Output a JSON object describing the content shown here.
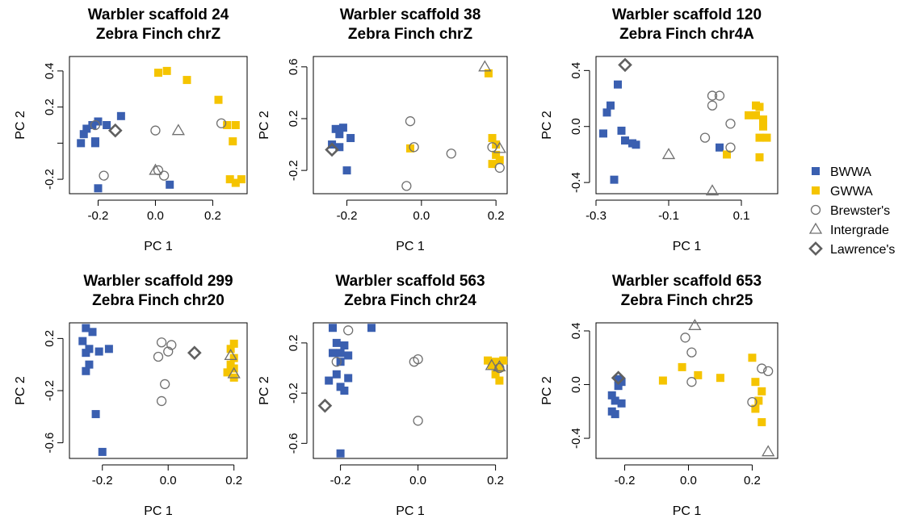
{
  "legend": {
    "items": [
      {
        "label": "BWWA",
        "shape": "square",
        "color": "#3a5fb0"
      },
      {
        "label": "GWWA",
        "shape": "square",
        "color": "#f5c400"
      },
      {
        "label": "Brewster's",
        "shape": "circle",
        "color": "#707070"
      },
      {
        "label": "Intergrade",
        "shape": "triangle",
        "color": "#707070"
      },
      {
        "label": "Lawrence's",
        "shape": "diamond",
        "color": "#707070"
      }
    ]
  },
  "chart_data": [
    {
      "type": "scatter",
      "title": [
        "Warbler scaffold 24",
        "Zebra Finch chrZ"
      ],
      "xlabel": "PC 1",
      "ylabel": "PC 2",
      "xlim": [
        -0.3,
        0.32
      ],
      "ylim": [
        -0.28,
        0.48
      ],
      "xticks": [
        {
          "v": -0.2,
          "t": "-0.2"
        },
        {
          "v": 0.0,
          "t": "0.0"
        },
        {
          "v": 0.2,
          "t": "0.2"
        }
      ],
      "yticks": [
        {
          "v": -0.2,
          "t": "-0.2"
        },
        {
          "v": 0.0,
          "t": ""
        },
        {
          "v": 0.2,
          "t": "0.2"
        },
        {
          "v": 0.4,
          "t": "0.4"
        }
      ],
      "series": [
        {
          "name": "BWWA",
          "points": [
            [
              -0.26,
              0.0
            ],
            [
              -0.25,
              0.05
            ],
            [
              -0.24,
              0.08
            ],
            [
              -0.22,
              0.1
            ],
            [
              -0.21,
              0.01
            ],
            [
              -0.2,
              0.12
            ],
            [
              -0.17,
              0.1
            ],
            [
              -0.12,
              0.15
            ],
            [
              -0.2,
              -0.25
            ],
            [
              0.05,
              -0.23
            ],
            [
              -0.21,
              0.0
            ]
          ]
        },
        {
          "name": "GWWA",
          "points": [
            [
              0.01,
              0.39
            ],
            [
              0.04,
              0.4
            ],
            [
              0.11,
              0.35
            ],
            [
              0.22,
              0.24
            ],
            [
              0.25,
              0.1
            ],
            [
              0.28,
              0.1
            ],
            [
              0.27,
              0.01
            ],
            [
              0.26,
              -0.2
            ],
            [
              0.28,
              -0.22
            ],
            [
              0.3,
              -0.2
            ]
          ]
        },
        {
          "name": "Brewster's",
          "points": [
            [
              -0.21,
              0.1
            ],
            [
              -0.18,
              -0.18
            ],
            [
              0.0,
              0.07
            ],
            [
              0.01,
              -0.15
            ],
            [
              0.03,
              -0.18
            ],
            [
              0.23,
              0.11
            ]
          ]
        },
        {
          "name": "Intergrade",
          "points": [
            [
              0.0,
              -0.15
            ],
            [
              0.08,
              0.07
            ]
          ]
        },
        {
          "name": "Lawrence's",
          "points": [
            [
              -0.14,
              0.07
            ]
          ]
        }
      ]
    },
    {
      "type": "scatter",
      "title": [
        "Warbler scaffold 38",
        "Zebra Finch chrZ"
      ],
      "xlabel": "PC 1",
      "ylabel": "PC 2",
      "xlim": [
        -0.29,
        0.23
      ],
      "ylim": [
        -0.38,
        0.68
      ],
      "xticks": [
        {
          "v": -0.2,
          "t": "-0.2"
        },
        {
          "v": 0.0,
          "t": "0.0"
        },
        {
          "v": 0.2,
          "t": "0.2"
        }
      ],
      "yticks": [
        {
          "v": -0.2,
          "t": "-0.2"
        },
        {
          "v": 0.2,
          "t": "0.2"
        },
        {
          "v": 0.6,
          "t": "0.6"
        }
      ],
      "series": [
        {
          "name": "BWWA",
          "points": [
            [
              -0.23,
              0.12
            ],
            [
              -0.22,
              0.08
            ],
            [
              -0.21,
              0.13
            ],
            [
              -0.24,
              0.0
            ],
            [
              -0.22,
              -0.02
            ],
            [
              -0.19,
              0.05
            ],
            [
              -0.2,
              -0.2
            ]
          ]
        },
        {
          "name": "GWWA",
          "points": [
            [
              0.18,
              0.55
            ],
            [
              0.19,
              0.05
            ],
            [
              0.2,
              0.0
            ],
            [
              0.2,
              -0.08
            ],
            [
              0.21,
              -0.12
            ],
            [
              0.19,
              -0.15
            ],
            [
              -0.03,
              -0.03
            ]
          ]
        },
        {
          "name": "Brewster's",
          "points": [
            [
              -0.03,
              0.18
            ],
            [
              -0.04,
              -0.32
            ],
            [
              -0.02,
              -0.02
            ],
            [
              0.08,
              -0.07
            ],
            [
              0.19,
              -0.02
            ],
            [
              0.21,
              -0.18
            ]
          ]
        },
        {
          "name": "Intergrade",
          "points": [
            [
              0.17,
              0.6
            ],
            [
              0.21,
              -0.03
            ]
          ]
        },
        {
          "name": "Lawrence's",
          "points": [
            [
              -0.24,
              -0.04
            ]
          ]
        }
      ]
    },
    {
      "type": "scatter",
      "title": [
        "Warbler scaffold 120",
        "Zebra Finch chr4A"
      ],
      "xlabel": "PC 1",
      "ylabel": "PC 2",
      "xlim": [
        -0.3,
        0.2
      ],
      "ylim": [
        -0.48,
        0.5
      ],
      "xticks": [
        {
          "v": -0.3,
          "t": "-0.3"
        },
        {
          "v": -0.1,
          "t": "-0.1"
        },
        {
          "v": 0.1,
          "t": "0.1"
        }
      ],
      "yticks": [
        {
          "v": -0.4,
          "t": "-0.4"
        },
        {
          "v": 0.0,
          "t": "0.0"
        },
        {
          "v": 0.4,
          "t": "0.4"
        }
      ],
      "series": [
        {
          "name": "BWWA",
          "points": [
            [
              -0.24,
              0.3
            ],
            [
              -0.26,
              0.15
            ],
            [
              -0.27,
              0.1
            ],
            [
              -0.28,
              -0.05
            ],
            [
              -0.23,
              -0.03
            ],
            [
              -0.22,
              -0.1
            ],
            [
              -0.2,
              -0.12
            ],
            [
              -0.19,
              -0.13
            ],
            [
              0.04,
              -0.15
            ],
            [
              -0.25,
              -0.38
            ]
          ]
        },
        {
          "name": "GWWA",
          "points": [
            [
              0.12,
              0.08
            ],
            [
              0.14,
              0.15
            ],
            [
              0.15,
              0.14
            ],
            [
              0.16,
              0.05
            ],
            [
              0.16,
              0.0
            ],
            [
              0.15,
              -0.08
            ],
            [
              0.17,
              -0.08
            ],
            [
              0.14,
              0.08
            ],
            [
              0.06,
              -0.2
            ],
            [
              0.15,
              -0.22
            ]
          ]
        },
        {
          "name": "Brewster's",
          "points": [
            [
              0.02,
              0.22
            ],
            [
              0.04,
              0.22
            ],
            [
              0.02,
              0.15
            ],
            [
              0.07,
              0.02
            ],
            [
              0.0,
              -0.08
            ],
            [
              0.07,
              -0.15
            ]
          ]
        },
        {
          "name": "Intergrade",
          "points": [
            [
              -0.1,
              -0.2
            ],
            [
              0.02,
              -0.46
            ]
          ]
        },
        {
          "name": "Lawrence's",
          "points": [
            [
              -0.22,
              0.44
            ]
          ]
        }
      ]
    },
    {
      "type": "scatter",
      "title": [
        "Warbler scaffold 299",
        "Zebra Finch chr20"
      ],
      "xlabel": "PC 1",
      "ylabel": "PC 2",
      "xlim": [
        -0.3,
        0.24
      ],
      "ylim": [
        -0.72,
        0.32
      ],
      "xticks": [
        {
          "v": -0.2,
          "t": "-0.2"
        },
        {
          "v": 0.0,
          "t": "0.0"
        },
        {
          "v": 0.2,
          "t": "0.2"
        }
      ],
      "yticks": [
        {
          "v": -0.6,
          "t": "-0.6"
        },
        {
          "v": -0.2,
          "t": "-0.2"
        },
        {
          "v": 0.2,
          "t": "0.2"
        }
      ],
      "series": [
        {
          "name": "BWWA",
          "points": [
            [
              -0.25,
              0.28
            ],
            [
              -0.23,
              0.25
            ],
            [
              -0.26,
              0.18
            ],
            [
              -0.24,
              0.12
            ],
            [
              -0.25,
              0.09
            ],
            [
              -0.21,
              0.1
            ],
            [
              -0.18,
              0.12
            ],
            [
              -0.24,
              0.0
            ],
            [
              -0.25,
              -0.05
            ],
            [
              -0.22,
              -0.38
            ],
            [
              -0.2,
              -0.67
            ]
          ]
        },
        {
          "name": "GWWA",
          "points": [
            [
              0.2,
              0.16
            ],
            [
              0.19,
              0.12
            ],
            [
              0.2,
              0.05
            ],
            [
              0.19,
              0.0
            ],
            [
              0.2,
              -0.03
            ],
            [
              0.18,
              -0.06
            ],
            [
              0.2,
              -0.1
            ]
          ]
        },
        {
          "name": "Brewster's",
          "points": [
            [
              -0.02,
              0.17
            ],
            [
              0.01,
              0.15
            ],
            [
              0.0,
              0.1
            ],
            [
              -0.03,
              0.06
            ],
            [
              -0.01,
              -0.15
            ],
            [
              -0.02,
              -0.28
            ]
          ]
        },
        {
          "name": "Intergrade",
          "points": [
            [
              0.19,
              0.07
            ],
            [
              0.2,
              -0.07
            ]
          ]
        },
        {
          "name": "Lawrence's",
          "points": [
            [
              0.08,
              0.09
            ]
          ]
        }
      ]
    },
    {
      "type": "scatter",
      "title": [
        "Warbler scaffold 563",
        "Zebra Finch chr24"
      ],
      "xlabel": "PC 1",
      "ylabel": "PC 2",
      "xlim": [
        -0.27,
        0.23
      ],
      "ylim": [
        -0.72,
        0.36
      ],
      "xticks": [
        {
          "v": -0.2,
          "t": "-0.2"
        },
        {
          "v": 0.0,
          "t": "0.0"
        },
        {
          "v": 0.2,
          "t": "0.2"
        }
      ],
      "yticks": [
        {
          "v": -0.6,
          "t": "-0.6"
        },
        {
          "v": -0.2,
          "t": "-0.2"
        },
        {
          "v": 0.2,
          "t": "0.2"
        }
      ],
      "series": [
        {
          "name": "BWWA",
          "points": [
            [
              -0.22,
              0.32
            ],
            [
              -0.12,
              0.32
            ],
            [
              -0.21,
              0.2
            ],
            [
              -0.19,
              0.18
            ],
            [
              -0.22,
              0.12
            ],
            [
              -0.2,
              0.12
            ],
            [
              -0.18,
              0.1
            ],
            [
              -0.2,
              0.05
            ],
            [
              -0.21,
              -0.05
            ],
            [
              -0.18,
              -0.08
            ],
            [
              -0.23,
              -0.1
            ],
            [
              -0.2,
              -0.15
            ],
            [
              -0.19,
              -0.18
            ],
            [
              -0.2,
              -0.68
            ]
          ]
        },
        {
          "name": "GWWA",
          "points": [
            [
              0.18,
              0.06
            ],
            [
              0.2,
              0.05
            ],
            [
              0.22,
              0.06
            ],
            [
              0.19,
              0.02
            ],
            [
              0.21,
              0.0
            ],
            [
              0.2,
              -0.05
            ],
            [
              0.21,
              -0.1
            ]
          ]
        },
        {
          "name": "Brewster's",
          "points": [
            [
              -0.18,
              0.3
            ],
            [
              -0.21,
              0.05
            ],
            [
              -0.01,
              0.05
            ],
            [
              0.0,
              0.07
            ],
            [
              0.21,
              0.0
            ],
            [
              0.0,
              -0.42
            ]
          ]
        },
        {
          "name": "Intergrade",
          "points": [
            [
              0.19,
              0.02
            ],
            [
              0.21,
              0.01
            ]
          ]
        },
        {
          "name": "Lawrence's",
          "points": [
            [
              -0.24,
              -0.3
            ]
          ]
        }
      ]
    },
    {
      "type": "scatter",
      "title": [
        "Warbler scaffold 653",
        "Zebra Finch chr25"
      ],
      "xlabel": "PC 1",
      "ylabel": "PC 2",
      "xlim": [
        -0.29,
        0.28
      ],
      "ylim": [
        -0.55,
        0.46
      ],
      "xticks": [
        {
          "v": -0.2,
          "t": "-0.2"
        },
        {
          "v": 0.0,
          "t": "0.0"
        },
        {
          "v": 0.2,
          "t": "0.2"
        }
      ],
      "yticks": [
        {
          "v": -0.4,
          "t": "-0.4"
        },
        {
          "v": 0.0,
          "t": "0.0"
        },
        {
          "v": 0.4,
          "t": "0.4"
        }
      ],
      "series": [
        {
          "name": "BWWA",
          "points": [
            [
              -0.22,
              0.04
            ],
            [
              -0.21,
              0.02
            ],
            [
              -0.22,
              -0.01
            ],
            [
              -0.24,
              -0.08
            ],
            [
              -0.23,
              -0.12
            ],
            [
              -0.21,
              -0.14
            ],
            [
              -0.24,
              -0.2
            ],
            [
              -0.23,
              -0.22
            ]
          ]
        },
        {
          "name": "GWWA",
          "points": [
            [
              -0.08,
              0.03
            ],
            [
              -0.02,
              0.13
            ],
            [
              0.03,
              0.07
            ],
            [
              0.1,
              0.05
            ],
            [
              0.2,
              0.2
            ],
            [
              0.21,
              0.02
            ],
            [
              0.23,
              -0.05
            ],
            [
              0.22,
              -0.12
            ],
            [
              0.21,
              -0.18
            ],
            [
              0.23,
              -0.28
            ]
          ]
        },
        {
          "name": "Brewster's",
          "points": [
            [
              -0.01,
              0.35
            ],
            [
              0.01,
              0.24
            ],
            [
              0.01,
              0.02
            ],
            [
              0.23,
              0.12
            ],
            [
              0.25,
              0.1
            ],
            [
              0.2,
              -0.13
            ]
          ]
        },
        {
          "name": "Intergrade",
          "points": [
            [
              0.02,
              0.44
            ],
            [
              0.25,
              -0.5
            ]
          ]
        },
        {
          "name": "Lawrence's",
          "points": [
            [
              -0.22,
              0.05
            ]
          ]
        }
      ]
    }
  ]
}
